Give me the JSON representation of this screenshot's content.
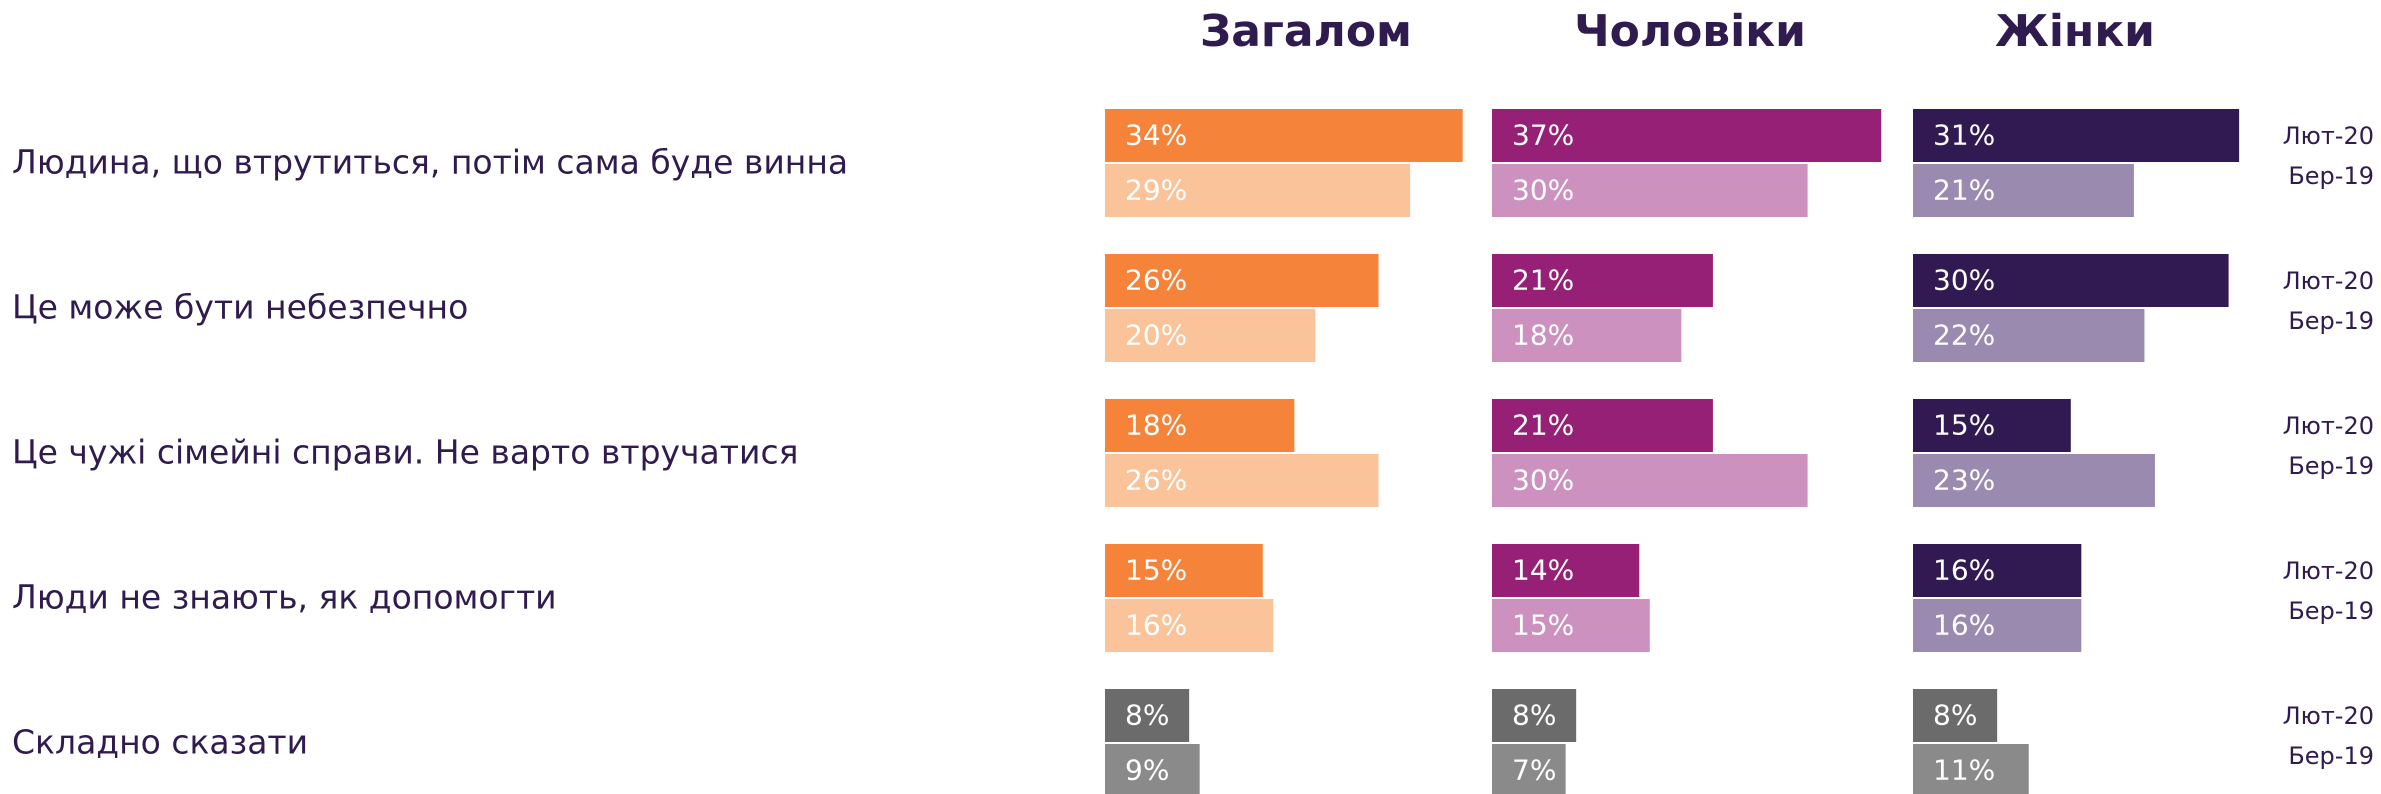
{
  "chart_data": {
    "type": "bar",
    "categories": [
      "Людина, що втрутиться, потім сама буде винна",
      "Це може бути небезпечно",
      "Це чужі сімейні справи. Не варто втручатися",
      "Люди не знають, як допомогти",
      "Складно сказати"
    ],
    "series_names": [
      "Лют-20",
      "Бер-19"
    ],
    "panels": [
      {
        "title": "Загалом",
        "series": [
          {
            "colors": [
              "#f5843a",
              "#f5843a",
              "#f5843a",
              "#f5843a",
              "#6b6b6b"
            ],
            "values": [
              34,
              26,
              18,
              15,
              8
            ],
            "value_labels": [
              "34%",
              "26%",
              "18%",
              "15%",
              "8%"
            ]
          },
          {
            "colors": [
              "#fac39a",
              "#fac39a",
              "#fac39a",
              "#fac39a",
              "#8a8a8a"
            ],
            "values": [
              29,
              20,
              26,
              16,
              9
            ],
            "value_labels": [
              "29%",
              "20%",
              "26%",
              "16%",
              "9%"
            ]
          }
        ]
      },
      {
        "title": "Чоловіки",
        "series": [
          {
            "colors": [
              "#952076",
              "#952076",
              "#952076",
              "#952076",
              "#6b6b6b"
            ],
            "values": [
              37,
              21,
              21,
              14,
              8
            ],
            "value_labels": [
              "37%",
              "21%",
              "21%",
              "14%",
              "8%"
            ]
          },
          {
            "colors": [
              "#cc91bf",
              "#cc91bf",
              "#cc91bf",
              "#cc91bf",
              "#8a8a8a"
            ],
            "values": [
              30,
              18,
              30,
              15,
              7
            ],
            "value_labels": [
              "30%",
              "18%",
              "30%",
              "15%",
              "7%"
            ]
          }
        ]
      },
      {
        "title": "Жінки",
        "series": [
          {
            "colors": [
              "#311a52",
              "#311a52",
              "#311a52",
              "#311a52",
              "#6b6b6b"
            ],
            "values": [
              31,
              30,
              15,
              16,
              8
            ],
            "value_labels": [
              "31%",
              "30%",
              "15%",
              "16%",
              "8%"
            ]
          },
          {
            "colors": [
              "#9a8aaf",
              "#9a8aaf",
              "#9a8aaf",
              "#9a8aaf",
              "#8a8a8a"
            ],
            "values": [
              21,
              22,
              23,
              16,
              11
            ],
            "value_labels": [
              "21%",
              "22%",
              "23%",
              "16%",
              "11%"
            ]
          }
        ]
      }
    ]
  }
}
